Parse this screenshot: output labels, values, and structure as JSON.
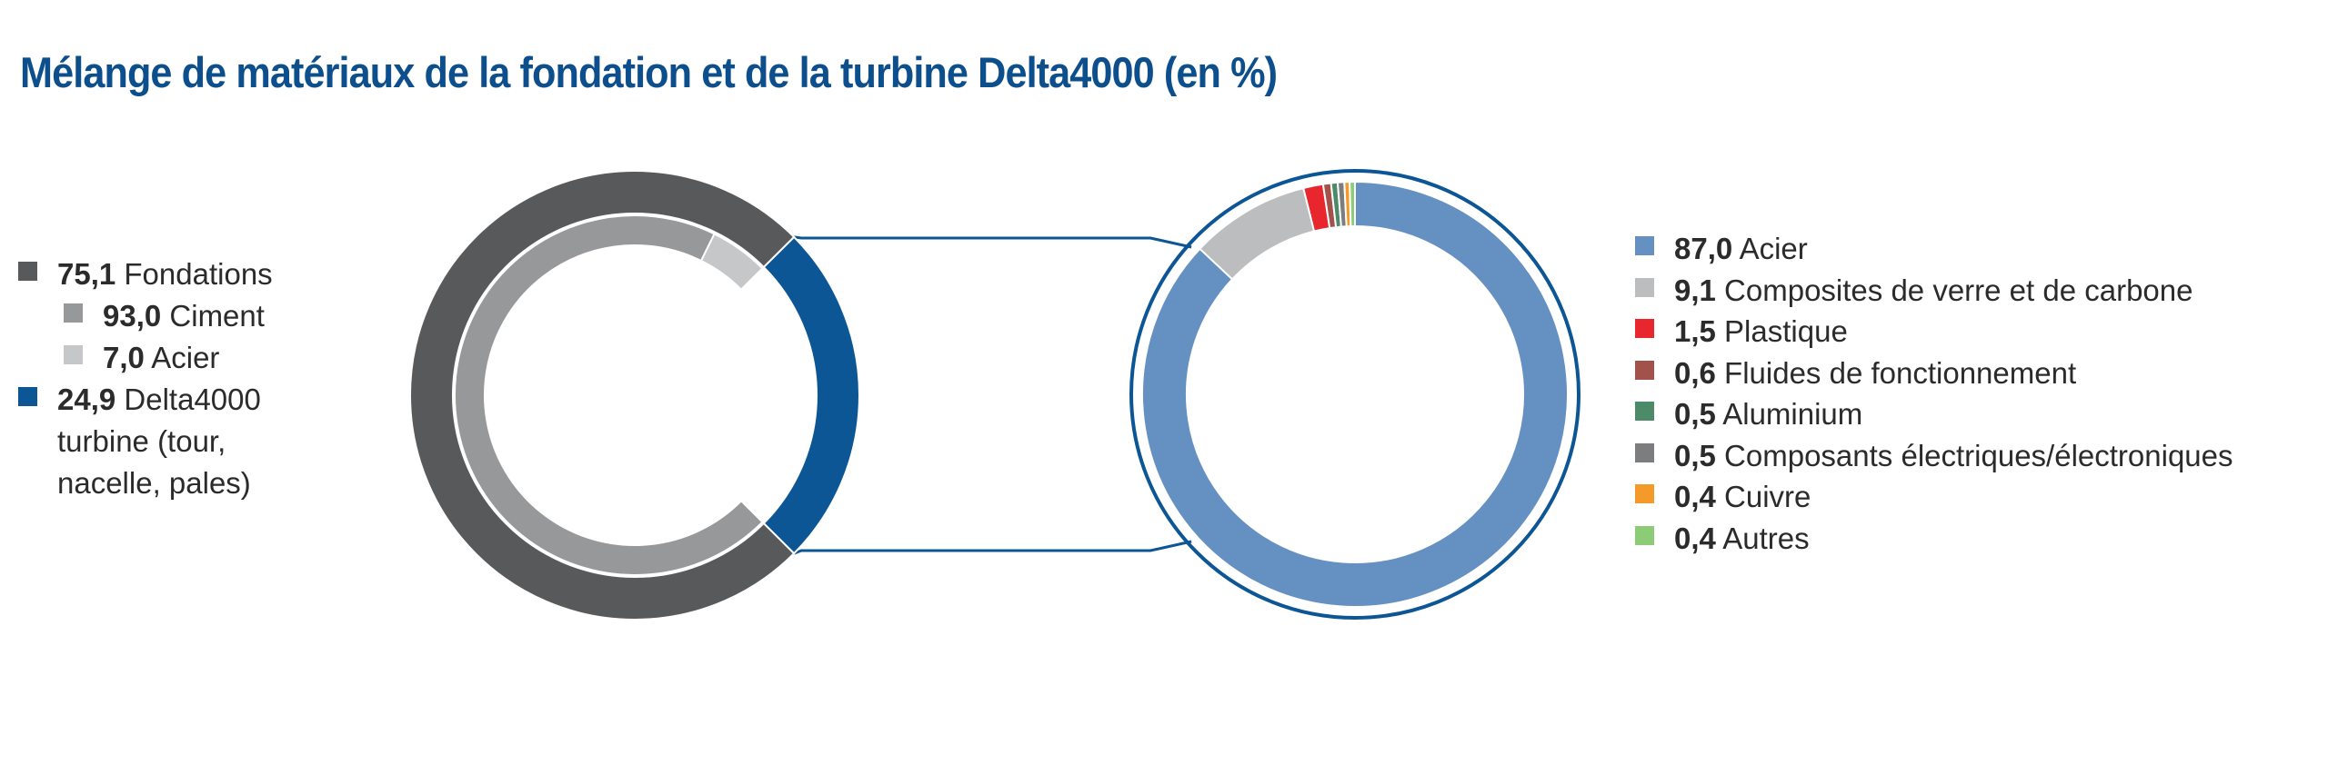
{
  "title": "Mélange de matériaux de la fondation et de la turbine Delta4000 (en %)",
  "colors": {
    "title": "#0d4f8c",
    "foundations": "#58595b",
    "ciment": "#97989a",
    "acier_foundation": "#c6c7c8",
    "turbine": "#0d5696",
    "acier": "#6590c2",
    "composites": "#bcbdbf",
    "plastique": "#e8262d",
    "fluides": "#a3514b",
    "aluminium": "#4d8a68",
    "electriques": "#7c7d7f",
    "cuivre": "#f39a2a",
    "autres": "#8ccc76"
  },
  "left_legend": [
    {
      "value": "75,1",
      "label": "Fondations",
      "color_key": "foundations",
      "indent": false
    },
    {
      "value": "93,0",
      "label": "Ciment",
      "color_key": "ciment",
      "indent": true
    },
    {
      "value": "7,0",
      "label": "Acier",
      "color_key": "acier_foundation",
      "indent": true
    },
    {
      "value": "24,9",
      "label": "Delta4000 turbine (tour, nacelle, pales)",
      "color_key": "turbine",
      "indent": false
    }
  ],
  "right_legend": [
    {
      "value": "87,0",
      "label": "Acier",
      "color_key": "acier"
    },
    {
      "value": "9,1",
      "label": "Composites de verre et de carbone",
      "color_key": "composites"
    },
    {
      "value": "1,5",
      "label": "Plastique",
      "color_key": "plastique"
    },
    {
      "value": "0,6",
      "label": "Fluides de fonctionnement",
      "color_key": "fluides"
    },
    {
      "value": "0,5",
      "label": "Aluminium",
      "color_key": "aluminium"
    },
    {
      "value": "0,5",
      "label": "Composants électriques/électroniques",
      "color_key": "electriques"
    },
    {
      "value": "0,4",
      "label": "Cuivre",
      "color_key": "cuivre"
    },
    {
      "value": "0,4",
      "label": "Autres",
      "color_key": "autres"
    }
  ],
  "chart_data": [
    {
      "type": "pie",
      "variant": "nested-donut",
      "title": "Mélange de matériaux de la fondation et de la turbine Delta4000 (en %)",
      "outer": {
        "categories": [
          "Fondations",
          "Delta4000 turbine (tour, nacelle, pales)"
        ],
        "values": [
          75.1,
          24.9
        ]
      },
      "inner": {
        "parent": "Fondations",
        "categories": [
          "Ciment",
          "Acier"
        ],
        "values": [
          93.0,
          7.0
        ]
      }
    },
    {
      "type": "pie",
      "variant": "donut",
      "parent": "Delta4000 turbine (tour, nacelle, pales)",
      "categories": [
        "Acier",
        "Composites de verre et de carbone",
        "Plastique",
        "Fluides de fonctionnement",
        "Aluminium",
        "Composants électriques/électroniques",
        "Cuivre",
        "Autres"
      ],
      "values": [
        87.0,
        9.1,
        1.5,
        0.6,
        0.5,
        0.5,
        0.4,
        0.4
      ]
    }
  ]
}
